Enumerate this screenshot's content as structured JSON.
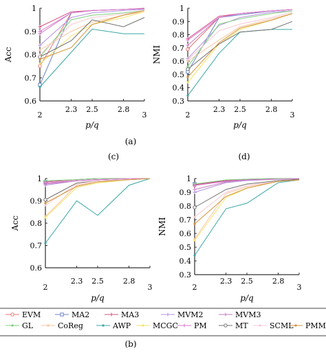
{
  "figure": {
    "panel_captions": [
      "(c)",
      "(d)",
      "(a)",
      "(b)"
    ]
  },
  "legend": {
    "entries": [
      {
        "name": "EVM",
        "color": "#e8756f",
        "marker": "circle"
      },
      {
        "name": "MA2",
        "color": "#6d86c8",
        "marker": "square"
      },
      {
        "name": "MA3",
        "color": "#d24f86",
        "marker": "plus"
      },
      {
        "name": "MVM2",
        "color": "#b391e0",
        "marker": "plus"
      },
      {
        "name": "MVM3",
        "color": "#c778c2",
        "marker": "plus"
      },
      {
        "name": "GL",
        "color": "#7ccf7a",
        "marker": "dot"
      },
      {
        "name": "CoReg",
        "color": "#f7c59e",
        "marker": "dot"
      },
      {
        "name": "AWP",
        "color": "#3aa6a6",
        "marker": "dot"
      },
      {
        "name": "MCGC",
        "color": "#f3e36b",
        "marker": "dot"
      },
      {
        "name": "PM",
        "color": "#d877cf",
        "marker": "plus"
      },
      {
        "name": "MT",
        "color": "#707070",
        "marker": "circle"
      },
      {
        "name": "SCML",
        "color": "#f7c8d2",
        "marker": "dot"
      },
      {
        "name": "PMM",
        "color": "#d3923a",
        "marker": "dot"
      }
    ]
  },
  "chart_data": [
    {
      "type": "line",
      "panel": "top-left",
      "xlabel": "p/q",
      "ylabel": "Acc",
      "x": [
        2,
        2.3,
        2.5,
        2.8,
        3
      ],
      "xticks": [
        "2",
        "2.3",
        "2.5",
        "2.8",
        "3"
      ],
      "yticks": [
        "0.6",
        "0.7",
        "0.8",
        "0.9",
        "1"
      ],
      "ylim": [
        0.6,
        1.0
      ],
      "grid": false,
      "series": [
        {
          "name": "EVM",
          "values": [
            0.75,
            0.98,
            0.99,
            0.995,
            0.998
          ]
        },
        {
          "name": "MA2",
          "values": [
            0.67,
            0.98,
            0.99,
            0.995,
            0.998
          ]
        },
        {
          "name": "MA3",
          "values": [
            0.92,
            0.985,
            0.99,
            0.995,
            1.0
          ]
        },
        {
          "name": "MVM2",
          "values": [
            0.84,
            0.96,
            0.98,
            0.99,
            0.995
          ]
        },
        {
          "name": "MVM3",
          "values": [
            0.89,
            0.98,
            0.99,
            0.995,
            0.998
          ]
        },
        {
          "name": "GL",
          "values": [
            0.79,
            0.95,
            0.97,
            0.98,
            0.99
          ]
        },
        {
          "name": "CoReg",
          "values": [
            0.82,
            0.9,
            0.94,
            0.97,
            0.985
          ]
        },
        {
          "name": "AWP",
          "values": [
            0.66,
            0.81,
            0.91,
            0.89,
            0.89
          ]
        },
        {
          "name": "MCGC",
          "values": [
            0.76,
            0.88,
            0.93,
            0.96,
            0.985
          ]
        },
        {
          "name": "PM",
          "values": [
            0.9,
            0.98,
            0.99,
            0.995,
            0.998
          ]
        },
        {
          "name": "MT",
          "values": [
            0.79,
            0.86,
            0.95,
            0.92,
            0.96
          ]
        },
        {
          "name": "SCML",
          "values": [
            0.8,
            0.93,
            0.96,
            0.975,
            0.99
          ]
        },
        {
          "name": "PMM",
          "values": [
            0.78,
            0.83,
            0.93,
            0.97,
            0.99
          ]
        }
      ]
    },
    {
      "type": "line",
      "panel": "top-right",
      "xlabel": "p/q",
      "ylabel": "NMI",
      "x": [
        2,
        2.3,
        2.5,
        2.8,
        3
      ],
      "xticks": [
        "2",
        "2.3",
        "2.5",
        "2.8",
        "3"
      ],
      "yticks": [
        "0.3",
        "0.4",
        "0.5",
        "0.6",
        "0.7",
        "0.8",
        "0.9",
        "1"
      ],
      "ylim": [
        0.3,
        1.0
      ],
      "grid": false,
      "series": [
        {
          "name": "EVM",
          "values": [
            0.69,
            0.93,
            0.96,
            0.98,
            0.99
          ]
        },
        {
          "name": "MA2",
          "values": [
            0.52,
            0.93,
            0.95,
            0.98,
            0.99
          ]
        },
        {
          "name": "MA3",
          "values": [
            0.77,
            0.94,
            0.96,
            0.98,
            0.99
          ]
        },
        {
          "name": "MVM2",
          "values": [
            0.62,
            0.87,
            0.93,
            0.97,
            0.98
          ]
        },
        {
          "name": "MVM3",
          "values": [
            0.72,
            0.93,
            0.96,
            0.98,
            0.99
          ]
        },
        {
          "name": "GL",
          "values": [
            0.56,
            0.88,
            0.92,
            0.96,
            0.98
          ]
        },
        {
          "name": "CoReg",
          "values": [
            0.6,
            0.76,
            0.86,
            0.92,
            0.96
          ]
        },
        {
          "name": "AWP",
          "values": [
            0.34,
            0.66,
            0.82,
            0.84,
            0.84
          ]
        },
        {
          "name": "MCGC",
          "values": [
            0.44,
            0.73,
            0.84,
            0.91,
            0.96
          ]
        },
        {
          "name": "PM",
          "values": [
            0.76,
            0.93,
            0.96,
            0.98,
            0.99
          ]
        },
        {
          "name": "MT",
          "values": [
            0.54,
            0.73,
            0.82,
            0.84,
            0.9
          ]
        },
        {
          "name": "SCML",
          "values": [
            0.61,
            0.83,
            0.88,
            0.93,
            0.97
          ]
        },
        {
          "name": "PMM",
          "values": [
            0.48,
            0.74,
            0.85,
            0.91,
            0.96
          ]
        }
      ]
    },
    {
      "type": "line",
      "panel": "bottom-left",
      "xlabel": "p/q",
      "ylabel": "Acc",
      "x": [
        2,
        2.3,
        2.5,
        2.8,
        3
      ],
      "xticks": [
        "2",
        "2.3",
        "2.5",
        "2.8",
        "3"
      ],
      "yticks": [
        "0.6",
        "0.7",
        "0.8",
        "0.9",
        "1"
      ],
      "ylim": [
        0.6,
        1.0
      ],
      "grid": false,
      "series": [
        {
          "name": "EVM",
          "values": [
            0.98,
            0.99,
            0.995,
            1.0,
            1.0
          ]
        },
        {
          "name": "MA2",
          "values": [
            0.985,
            0.995,
            1.0,
            1.0,
            1.0
          ]
        },
        {
          "name": "MA3",
          "values": [
            0.985,
            0.995,
            1.0,
            1.0,
            1.0
          ]
        },
        {
          "name": "MVM2",
          "values": [
            0.97,
            0.99,
            0.995,
            1.0,
            1.0
          ]
        },
        {
          "name": "MVM3",
          "values": [
            0.975,
            0.99,
            0.995,
            1.0,
            1.0
          ]
        },
        {
          "name": "GL",
          "values": [
            0.99,
            0.995,
            1.0,
            1.0,
            1.0
          ]
        },
        {
          "name": "CoReg",
          "values": [
            0.83,
            0.97,
            0.985,
            0.995,
            1.0
          ]
        },
        {
          "name": "AWP",
          "values": [
            0.71,
            0.9,
            0.835,
            0.97,
            1.0
          ]
        },
        {
          "name": "MCGC",
          "values": [
            0.825,
            0.96,
            0.98,
            0.995,
            1.0
          ]
        },
        {
          "name": "PM",
          "values": [
            0.98,
            0.99,
            0.995,
            1.0,
            1.0
          ]
        },
        {
          "name": "MT",
          "values": [
            0.905,
            0.98,
            0.99,
            0.995,
            1.0
          ]
        },
        {
          "name": "SCML",
          "values": [
            0.88,
            0.975,
            0.99,
            0.995,
            1.0
          ]
        },
        {
          "name": "PMM",
          "values": [
            0.89,
            0.965,
            0.985,
            0.995,
            1.0
          ]
        }
      ]
    },
    {
      "type": "line",
      "panel": "bottom-right",
      "xlabel": "p/q",
      "ylabel": "NMI",
      "x": [
        2,
        2.3,
        2.5,
        2.8,
        3
      ],
      "xticks": [
        "2",
        "2.3",
        "2.5",
        "2.8",
        "3"
      ],
      "yticks": [
        "0.3",
        "0.4",
        "0.5",
        "0.6",
        "0.7",
        "0.8",
        "0.9",
        "1"
      ],
      "ylim": [
        0.3,
        1.0
      ],
      "grid": false,
      "series": [
        {
          "name": "EVM",
          "values": [
            0.95,
            0.98,
            0.99,
            0.995,
            1.0
          ]
        },
        {
          "name": "MA2",
          "values": [
            0.96,
            0.985,
            0.995,
            1.0,
            1.0
          ]
        },
        {
          "name": "MA3",
          "values": [
            0.955,
            0.985,
            0.995,
            1.0,
            1.0
          ]
        },
        {
          "name": "MVM2",
          "values": [
            0.9,
            0.97,
            0.985,
            0.995,
            1.0
          ]
        },
        {
          "name": "MVM3",
          "values": [
            0.92,
            0.975,
            0.99,
            0.995,
            1.0
          ]
        },
        {
          "name": "GL",
          "values": [
            0.96,
            0.99,
            0.995,
            1.0,
            1.0
          ]
        },
        {
          "name": "CoReg",
          "values": [
            0.56,
            0.89,
            0.94,
            0.98,
            0.99
          ]
        },
        {
          "name": "AWP",
          "values": [
            0.44,
            0.78,
            0.82,
            0.97,
            0.99
          ]
        },
        {
          "name": "MCGC",
          "values": [
            0.55,
            0.86,
            0.93,
            0.98,
            0.99
          ]
        },
        {
          "name": "PM",
          "values": [
            0.95,
            0.98,
            0.99,
            0.995,
            1.0
          ]
        },
        {
          "name": "MT",
          "values": [
            0.79,
            0.92,
            0.96,
            0.985,
            0.995
          ]
        },
        {
          "name": "SCML",
          "values": [
            0.72,
            0.9,
            0.95,
            0.98,
            0.99
          ]
        },
        {
          "name": "PMM",
          "values": [
            0.67,
            0.87,
            0.93,
            0.98,
            0.99
          ]
        }
      ]
    }
  ]
}
